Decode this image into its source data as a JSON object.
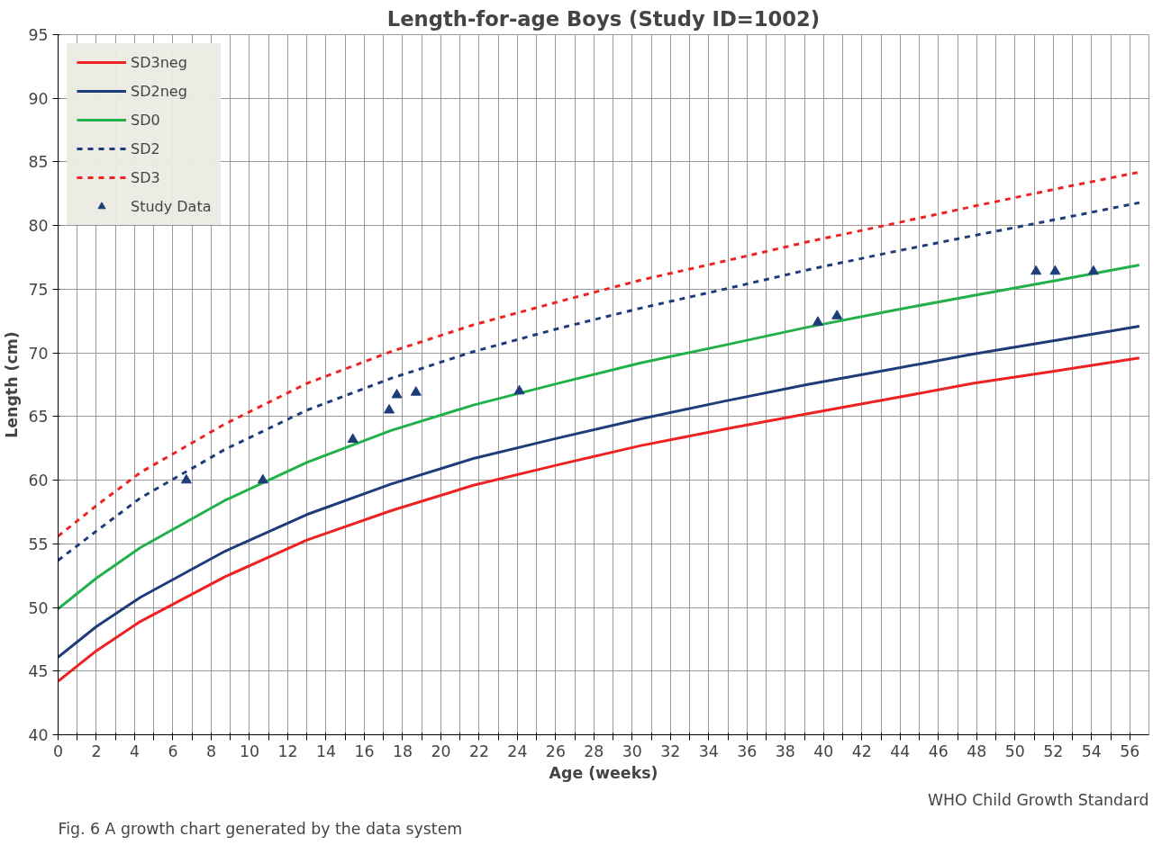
{
  "chart_data": {
    "type": "line",
    "title": "Length-for-age Boys (Study ID=1002)",
    "xlabel": "Age (weeks)",
    "ylabel": "Length (cm)",
    "x": [
      0,
      2,
      4.3,
      8.7,
      13,
      17.4,
      21.7,
      26.1,
      30.4,
      34.8,
      39.1,
      43.5,
      47.8,
      52.2,
      56.5
    ],
    "series": [
      {
        "name": "SD3neg",
        "color": "#ee2222",
        "line_style": "solid",
        "values": [
          44.2,
          46.6,
          48.9,
          52.4,
          55.3,
          57.6,
          59.6,
          61.2,
          62.7,
          64.0,
          65.2,
          66.4,
          67.6,
          68.6,
          69.6
        ]
      },
      {
        "name": "SD2neg",
        "color": "#1f3c7a",
        "line_style": "solid",
        "values": [
          46.1,
          48.5,
          50.8,
          54.4,
          57.3,
          59.7,
          61.7,
          63.3,
          64.8,
          66.2,
          67.5,
          68.7,
          69.9,
          71.0,
          72.1
        ]
      },
      {
        "name": "SD0",
        "color": "#22b04a",
        "line_style": "solid",
        "values": [
          49.9,
          52.3,
          54.7,
          58.4,
          61.4,
          63.9,
          65.9,
          67.6,
          69.2,
          70.6,
          72.0,
          73.3,
          74.5,
          75.7,
          76.9
        ]
      },
      {
        "name": "SD2",
        "color": "#1f3c7a",
        "line_style": "dashed",
        "values": [
          53.7,
          56.0,
          58.6,
          62.4,
          65.5,
          68.0,
          70.1,
          71.9,
          73.5,
          75.0,
          76.5,
          77.9,
          79.2,
          80.5,
          81.8
        ]
      },
      {
        "name": "SD3",
        "color": "#ee2222",
        "line_style": "dashed",
        "values": [
          55.6,
          58.0,
          60.6,
          64.4,
          67.6,
          70.1,
          72.2,
          74.0,
          75.7,
          77.2,
          78.7,
          80.1,
          81.5,
          82.9,
          84.2
        ]
      },
      {
        "name": "Study Data",
        "type": "scatter",
        "marker": "triangle",
        "color": "#1f3c7a",
        "x": [
          6.7,
          10.7,
          15.4,
          17.3,
          17.7,
          18.7,
          24.1,
          39.7,
          40.7,
          51.1,
          52.1,
          54.1
        ],
        "values": [
          60.0,
          60.0,
          63.2,
          65.5,
          66.7,
          66.9,
          67.0,
          72.4,
          72.9,
          76.4,
          76.4,
          76.4
        ]
      }
    ],
    "xlim": [
      0,
      57
    ],
    "ylim": [
      40,
      95
    ],
    "xticks": [
      0,
      {
        "value": 1,
        "label": null
      },
      2,
      {
        "value": 3,
        "label": null
      },
      4,
      {
        "value": 5,
        "label": null
      },
      6,
      {
        "value": 7,
        "label": null
      },
      8,
      {
        "value": 9,
        "label": null
      },
      10,
      {
        "value": 11,
        "label": null
      },
      12,
      {
        "value": 13,
        "label": null
      },
      14,
      {
        "value": 15,
        "label": null
      },
      16,
      {
        "value": 17,
        "label": null
      },
      18,
      {
        "value": 19,
        "label": null
      },
      20,
      {
        "value": 21,
        "label": null
      },
      22,
      {
        "value": 23,
        "label": null
      },
      24,
      {
        "value": 25,
        "label": null
      },
      26,
      {
        "value": 27,
        "label": null
      },
      28,
      {
        "value": 29,
        "label": null
      },
      30,
      {
        "value": 31,
        "label": null
      },
      32,
      {
        "value": 33,
        "label": null
      },
      34,
      {
        "value": 35,
        "label": null
      },
      36,
      {
        "value": 37,
        "label": null
      },
      38,
      {
        "value": 39,
        "label": null
      },
      40,
      {
        "value": 41,
        "label": null
      },
      42,
      {
        "value": 43,
        "label": null
      },
      44,
      {
        "value": 45,
        "label": null
      },
      46,
      {
        "value": 47,
        "label": null
      },
      48,
      {
        "value": 49,
        "label": null
      },
      50,
      {
        "value": 51,
        "label": null
      },
      52,
      {
        "value": 53,
        "label": null
      },
      54,
      {
        "value": 55,
        "label": null
      },
      56
    ],
    "yticks": [
      40,
      45,
      50,
      55,
      60,
      65,
      70,
      75,
      80,
      85,
      90,
      95
    ],
    "grid": true,
    "legend": "top left",
    "annotations": [
      "WHO Child Growth Standard",
      "Fig. 6 A growth chart generated by the data system"
    ]
  }
}
